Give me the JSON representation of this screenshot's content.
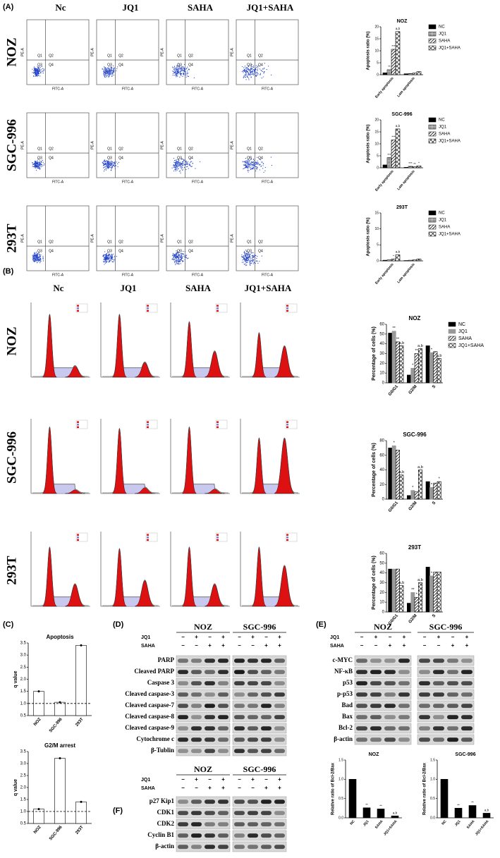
{
  "panel_a": {
    "label": "(A)",
    "columns": [
      "Nc",
      "JQ1",
      "SAHA",
      "JQ1+SAHA"
    ],
    "rows": [
      "NOZ",
      "SGC-996",
      "293T"
    ],
    "quadrants": [
      "Q1",
      "Q2",
      "Q3",
      "Q4"
    ],
    "x_axis_label": "FITC-A",
    "y_axis_label": "PE-A",
    "charts": [
      {
        "type": "bar",
        "title": "NOZ",
        "y_label": "Apoptosis ratio (%)",
        "categories": [
          "Early apoptosis",
          "Late apoptosis"
        ],
        "ylim": [
          0,
          20
        ],
        "yticks": [
          0,
          5,
          10,
          15,
          20
        ],
        "legend": true,
        "series": [
          {
            "name": "NC",
            "color": "#000000",
            "pattern": "solid",
            "values": [
              0.8,
              0.4
            ],
            "annotations": [
              null,
              null
            ]
          },
          {
            "name": "JQ1",
            "color": "#000000",
            "pattern": "dots",
            "values": [
              2.1,
              0.5
            ],
            "annotations": [
              "**",
              null
            ]
          },
          {
            "name": "SAHA",
            "color": "#000000",
            "pattern": "diagonal",
            "values": [
              10.6,
              0.7
            ],
            "annotations": [
              "***",
              null
            ]
          },
          {
            "name": "JQ1+SAHA",
            "color": "#000000",
            "pattern": "cross",
            "values": [
              18,
              1.3
            ],
            "annotations": [
              "a,b",
              null
            ]
          }
        ]
      },
      {
        "type": "bar",
        "title": "SGC-996",
        "y_label": "Apoptosis ratio (%)",
        "categories": [
          "Early apoptosis",
          "Late apoptosis"
        ],
        "ylim": [
          0,
          20
        ],
        "yticks": [
          0,
          5,
          10,
          15,
          20
        ],
        "legend": true,
        "series": [
          {
            "name": "NC",
            "color": "#000000",
            "pattern": "solid",
            "values": [
              1.2,
              0.2
            ],
            "annotations": [
              null,
              null
            ]
          },
          {
            "name": "JQ1",
            "color": "#000000",
            "pattern": "dots",
            "values": [
              4.2,
              0.6
            ],
            "annotations": [
              "***",
              "***"
            ]
          },
          {
            "name": "SAHA",
            "color": "#000000",
            "pattern": "diagonal",
            "values": [
              11.6,
              0.4
            ],
            "annotations": [
              "***",
              "**"
            ]
          },
          {
            "name": "JQ1+SAHA",
            "color": "#000000",
            "pattern": "cross",
            "values": [
              16.2,
              0.8
            ],
            "annotations": [
              "a,b",
              "*"
            ]
          }
        ]
      },
      {
        "type": "bar",
        "title": "293T",
        "y_label": "Apoptosis ratio (%)",
        "categories": [
          "Early apoptosis",
          "Late apoptosis"
        ],
        "ylim": [
          0,
          15
        ],
        "yticks": [
          0,
          5,
          10,
          15
        ],
        "legend": true,
        "series": [
          {
            "name": "NC",
            "color": "#000000",
            "pattern": "solid",
            "values": [
              0.2,
              0.1
            ],
            "annotations": [
              null,
              null
            ]
          },
          {
            "name": "JQ1",
            "color": "#000000",
            "pattern": "dots",
            "values": [
              0.3,
              0.2
            ],
            "annotations": [
              null,
              null
            ]
          },
          {
            "name": "SAHA",
            "color": "#000000",
            "pattern": "diagonal",
            "values": [
              0.6,
              0.3
            ],
            "annotations": [
              "*",
              null
            ]
          },
          {
            "name": "JQ1+SAHA",
            "color": "#000000",
            "pattern": "cross",
            "values": [
              1.9,
              0.6
            ],
            "annotations": [
              "a,b",
              null
            ]
          }
        ]
      }
    ]
  },
  "panel_b": {
    "label": "(B)",
    "columns": [
      "Nc",
      "JQ1",
      "SAHA",
      "JQ1+SAHA"
    ],
    "rows": [
      "NOZ",
      "SGC-996",
      "293T"
    ],
    "charts": [
      {
        "type": "bar",
        "title": "NOZ",
        "y_label": "Percentage of cells (%)",
        "categories": [
          "G0/G1",
          "G2/M",
          "S"
        ],
        "ylim": [
          0,
          60
        ],
        "yticks": [
          0,
          10,
          20,
          30,
          40,
          50,
          60
        ],
        "legend": true,
        "series": [
          {
            "name": "NC",
            "color": "#000000",
            "pattern": "solid",
            "values": [
              51,
              8,
              38
            ],
            "annotations": [
              null,
              null,
              null
            ]
          },
          {
            "name": "JQ1",
            "color": "#999999",
            "pattern": "solid",
            "values": [
              53,
              15,
              31
            ],
            "annotations": [
              "**",
              "*",
              "*"
            ]
          },
          {
            "name": "SAHA",
            "color": "#000000",
            "pattern": "diagonal",
            "values": [
              42,
              30,
              32
            ],
            "annotations": [
              "**",
              "**",
              null
            ]
          },
          {
            "name": "JQ1+SAHA",
            "color": "#000000",
            "pattern": "cross",
            "values": [
              38,
              35,
              25
            ],
            "annotations": [
              "a,b",
              "a,b",
              "a,b"
            ]
          }
        ]
      },
      {
        "type": "bar",
        "title": "SGC-996",
        "y_label": "Percentage of cells (%)",
        "categories": [
          "G0/G1",
          "G2/M",
          "S"
        ],
        "ylim": [
          0,
          80
        ],
        "yticks": [
          0,
          20,
          40,
          60,
          80
        ],
        "legend": false,
        "series": [
          {
            "name": "NC",
            "color": "#000000",
            "pattern": "solid",
            "values": [
              70,
              5,
              24
            ],
            "annotations": [
              null,
              null,
              null
            ]
          },
          {
            "name": "JQ1",
            "color": "#999999",
            "pattern": "solid",
            "values": [
              73,
              12,
              16
            ],
            "annotations": [
              "*",
              "*",
              "*"
            ]
          },
          {
            "name": "SAHA",
            "color": "#000000",
            "pattern": "diagonal",
            "values": [
              67,
              10,
              22
            ],
            "annotations": [
              null,
              null,
              null
            ]
          },
          {
            "name": "JQ1+SAHA",
            "color": "#000000",
            "pattern": "cross",
            "values": [
              33,
              40,
              24
            ],
            "annotations": [
              "a,b",
              "a,b",
              "*"
            ]
          }
        ]
      },
      {
        "type": "bar",
        "title": "293T",
        "y_label": "Percentage of cells (%)",
        "categories": [
          "G0/G1",
          "G2/M",
          "S"
        ],
        "ylim": [
          0,
          60
        ],
        "yticks": [
          0,
          10,
          20,
          30,
          40,
          50,
          60
        ],
        "legend": false,
        "series": [
          {
            "name": "NC",
            "color": "#000000",
            "pattern": "solid",
            "values": [
              44,
              9,
              46
            ],
            "annotations": [
              null,
              null,
              null
            ]
          },
          {
            "name": "JQ1",
            "color": "#999999",
            "pattern": "solid",
            "values": [
              44,
              20,
              37
            ],
            "annotations": [
              null,
              "**",
              "*"
            ]
          },
          {
            "name": "SAHA",
            "color": "#000000",
            "pattern": "diagonal",
            "values": [
              44,
              15,
              41
            ],
            "annotations": [
              null,
              "*",
              null
            ]
          },
          {
            "name": "JQ1+SAHA",
            "color": "#000000",
            "pattern": "cross",
            "values": [
              27,
              30,
              41
            ],
            "annotations": [
              "a,b",
              "a,b",
              null
            ]
          }
        ]
      }
    ]
  },
  "panel_c": {
    "label": "(C)",
    "charts": [
      {
        "type": "bar",
        "title": "Apoptosis",
        "y_label": "q value",
        "categories": [
          "NOZ",
          "SGC-996",
          "293T"
        ],
        "values": [
          1.5,
          1.05,
          3.4
        ],
        "color": "#ffffff",
        "ylim": [
          0.5,
          3.5
        ],
        "yticks": [
          0.5,
          {
            "value": 1,
            "label": "1.0"
          },
          1.5,
          {
            "value": 2,
            "label": "2.0"
          },
          2.5,
          {
            "value": 3,
            "label": "3.0"
          },
          3.5
        ],
        "reference_line": 1
      },
      {
        "type": "bar",
        "title": "G2/M arrest",
        "y_label": "q value",
        "categories": [
          "NOZ",
          "SGC-996",
          "293T"
        ],
        "values": [
          1.1,
          3.22,
          1.4
        ],
        "color": "#ffffff",
        "ylim": [
          0.5,
          3.5
        ],
        "yticks": [
          0.5,
          {
            "value": 1,
            "label": "1.0"
          },
          1.5,
          {
            "value": 2,
            "label": "2.0"
          },
          2.5,
          {
            "value": 3,
            "label": "3.0"
          },
          3.5
        ],
        "reference_line": 1
      }
    ]
  },
  "panel_d": {
    "label": "(D)",
    "cell_lines": [
      "NOZ",
      "SGC-996"
    ],
    "treatments": [
      {
        "name": "JQ1",
        "signs": [
          "−",
          "+",
          "−",
          "+"
        ]
      },
      {
        "name": "SAHA",
        "signs": [
          "−",
          "−",
          "+",
          "+"
        ]
      }
    ],
    "proteins": [
      "PARP",
      "Cleaved PARP",
      "Caspase 3",
      "Cleaved caspase-3",
      "Cleaved caspase-7",
      "Cleaved caspase-8",
      "Cleaved caspase-9",
      "Cytochrome c",
      "β-Tublin"
    ]
  },
  "panel_e": {
    "label": "(E)",
    "cell_lines": [
      "NOZ",
      "SGC-996"
    ],
    "treatments": [
      {
        "name": "JQ1",
        "signs": [
          "−",
          "+",
          "−",
          "+"
        ]
      },
      {
        "name": "SAHA",
        "signs": [
          "−",
          "−",
          "+",
          "+"
        ]
      }
    ],
    "proteins": [
      "c-MYC",
      "NF-κB",
      "p53",
      "p-p53",
      "Bad",
      "Bax",
      "Bcl-2",
      "β-actin"
    ],
    "charts": [
      {
        "type": "bar",
        "title": "NOZ",
        "y_label": "Relative ratio of Bcl-2/Bax",
        "categories": [
          "NC",
          "JQ1",
          "SAHA",
          "JQ1+SAHA"
        ],
        "values": [
          1.0,
          0.26,
          0.23,
          0.05
        ],
        "annotations": [
          null,
          "**",
          "**",
          "a,b"
        ],
        "color": "#000000",
        "ylim": [
          0,
          1.5
        ],
        "yticks": [
          {
            "value": 0,
            "label": "0.0"
          },
          0.5,
          {
            "value": 1,
            "label": "1.0"
          },
          1.5
        ]
      },
      {
        "type": "bar",
        "title": "SGC-996",
        "y_label": "Relative ratio of Bcl-2/Bax",
        "categories": [
          "NC",
          "JQ1",
          "SAHA",
          "JQ1+SAHA"
        ],
        "values": [
          1.0,
          0.25,
          0.32,
          0.12
        ],
        "annotations": [
          null,
          "**",
          "**",
          "a,b"
        ],
        "color": "#000000",
        "ylim": [
          0,
          1.5
        ],
        "yticks": [
          {
            "value": 0,
            "label": "0.0"
          },
          0.5,
          {
            "value": 1,
            "label": "1.0"
          },
          1.5
        ]
      }
    ]
  },
  "panel_f": {
    "label": "(F)",
    "cell_lines": [
      "NOZ",
      "SGC-996"
    ],
    "treatments": [
      {
        "name": "JQ1",
        "signs": [
          "−",
          "+",
          "−",
          "+"
        ]
      },
      {
        "name": "SAHA",
        "signs": [
          "−",
          "−",
          "+",
          "+"
        ]
      }
    ],
    "proteins": [
      "p27 Kip1",
      "CDK1",
      "CDK2",
      "Cyclin B1",
      "β-actin"
    ]
  }
}
